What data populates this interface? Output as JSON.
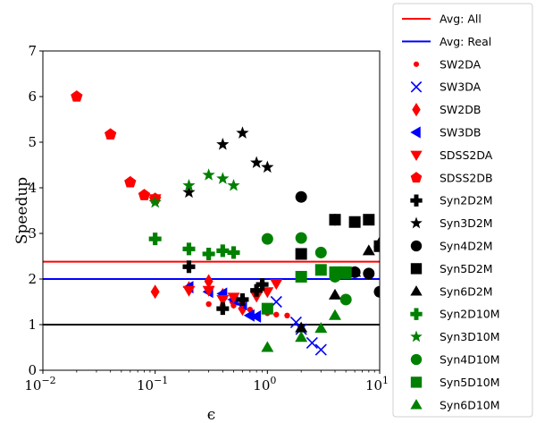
{
  "chart_data": {
    "type": "scatter",
    "xlabel": "ϵ",
    "ylabel": "Speedup",
    "xscale": "log",
    "xlim": [
      0.01,
      10
    ],
    "ylim": [
      0,
      7
    ],
    "xticks": [
      {
        "value": 0.01,
        "base": "10",
        "exp": "−2"
      },
      {
        "value": 0.1,
        "base": "10",
        "exp": "−1"
      },
      {
        "value": 1,
        "base": "10",
        "exp": "0"
      },
      {
        "value": 10,
        "base": "10",
        "exp": "1"
      }
    ],
    "yticks": [
      {
        "value": 0,
        "label": "0"
      },
      {
        "value": 1,
        "label": "1"
      },
      {
        "value": 2,
        "label": "2"
      },
      {
        "value": 3,
        "label": "3"
      },
      {
        "value": 4,
        "label": "4"
      },
      {
        "value": 5,
        "label": "5"
      },
      {
        "value": 6,
        "label": "6"
      },
      {
        "value": 7,
        "label": "7"
      }
    ],
    "grid": false,
    "legend_position": "outside-right",
    "hlines": [
      {
        "name": "Avg: All",
        "y": 2.38,
        "color": "#ff0000"
      },
      {
        "name": "Avg: Real",
        "y": 2.0,
        "color": "#0000ff"
      },
      {
        "y": 1.0,
        "color": "#000000"
      }
    ],
    "series": [
      {
        "name": "SW2DA",
        "marker": "dot",
        "color": "#ff0000",
        "points": [
          [
            0.3,
            1.45
          ],
          [
            0.4,
            1.42
          ],
          [
            0.5,
            1.42
          ],
          [
            0.6,
            1.35
          ],
          [
            0.7,
            1.33
          ],
          [
            1.0,
            1.25
          ],
          [
            1.2,
            1.22
          ],
          [
            1.5,
            1.2
          ]
        ]
      },
      {
        "name": "SW3DA",
        "marker": "x",
        "color": "#0000ff",
        "points": [
          [
            1.2,
            1.5
          ],
          [
            1.8,
            1.05
          ],
          [
            2.0,
            0.9
          ],
          [
            2.5,
            0.6
          ],
          [
            3.0,
            0.45
          ]
        ]
      },
      {
        "name": "SW2DB",
        "marker": "thin_diamond",
        "color": "#ff0000",
        "points": [
          [
            0.1,
            1.72
          ],
          [
            0.2,
            1.8
          ],
          [
            0.3,
            1.95
          ],
          [
            0.4,
            1.65
          ],
          [
            0.5,
            1.5
          ],
          [
            0.6,
            1.35
          ]
        ]
      },
      {
        "name": "SW3DB",
        "marker": "triangle-left",
        "color": "#0000ff",
        "points": [
          [
            0.2,
            1.82
          ],
          [
            0.3,
            1.72
          ],
          [
            0.4,
            1.68
          ],
          [
            0.5,
            1.55
          ],
          [
            0.6,
            1.45
          ],
          [
            0.7,
            1.2
          ],
          [
            0.8,
            1.18
          ]
        ]
      },
      {
        "name": "SDSS2DA",
        "marker": "triangle-down",
        "color": "#ff0000",
        "points": [
          [
            0.1,
            3.76
          ],
          [
            0.2,
            1.75
          ],
          [
            0.3,
            1.75
          ],
          [
            0.4,
            1.55
          ],
          [
            0.5,
            1.6
          ],
          [
            0.6,
            1.5
          ],
          [
            0.8,
            1.62
          ],
          [
            1.0,
            1.72
          ],
          [
            1.2,
            1.9
          ]
        ]
      },
      {
        "name": "SDSS2DB",
        "marker": "pentagon",
        "color": "#ff0000",
        "points": [
          [
            0.02,
            6.0
          ],
          [
            0.04,
            5.17
          ],
          [
            0.06,
            4.12
          ],
          [
            0.08,
            3.84
          ],
          [
            0.1,
            3.76
          ]
        ]
      },
      {
        "name": "Syn2D2M",
        "marker": "plus-filled",
        "color": "#000000",
        "points": [
          [
            0.2,
            2.27
          ],
          [
            0.4,
            1.35
          ],
          [
            0.6,
            1.55
          ],
          [
            0.8,
            1.75
          ],
          [
            0.9,
            1.88
          ]
        ]
      },
      {
        "name": "Syn3D2M",
        "marker": "star",
        "color": "#000000",
        "points": [
          [
            0.2,
            3.9
          ],
          [
            0.4,
            4.95
          ],
          [
            0.6,
            5.2
          ],
          [
            0.8,
            4.55
          ],
          [
            1.0,
            4.45
          ]
        ]
      },
      {
        "name": "Syn4D2M",
        "marker": "circle",
        "color": "#000000",
        "points": [
          [
            2.0,
            3.8
          ],
          [
            4.0,
            3.3
          ],
          [
            6.0,
            2.15
          ],
          [
            8.0,
            2.12
          ],
          [
            10.0,
            1.72
          ]
        ]
      },
      {
        "name": "Syn5D2M",
        "marker": "square",
        "color": "#000000",
        "points": [
          [
            2.0,
            2.55
          ],
          [
            4.0,
            3.3
          ],
          [
            6.0,
            3.25
          ],
          [
            8.0,
            3.3
          ],
          [
            10.0,
            2.72
          ]
        ]
      },
      {
        "name": "Syn6D2M",
        "marker": "triangle-up",
        "color": "#000000",
        "points": [
          [
            2.0,
            0.93
          ],
          [
            4.0,
            1.65
          ],
          [
            6.0,
            2.15
          ],
          [
            8.0,
            2.62
          ],
          [
            10.0,
            2.8
          ]
        ]
      },
      {
        "name": "Syn2D10M",
        "marker": "plus-filled",
        "color": "#008000",
        "points": [
          [
            0.1,
            2.88
          ],
          [
            0.2,
            2.66
          ],
          [
            0.3,
            2.55
          ],
          [
            0.4,
            2.62
          ],
          [
            0.5,
            2.58
          ]
        ]
      },
      {
        "name": "Syn3D10M",
        "marker": "star",
        "color": "#008000",
        "points": [
          [
            0.1,
            3.68
          ],
          [
            0.2,
            4.05
          ],
          [
            0.3,
            4.28
          ],
          [
            0.4,
            4.2
          ],
          [
            0.5,
            4.05
          ]
        ]
      },
      {
        "name": "Syn4D10M",
        "marker": "circle",
        "color": "#008000",
        "points": [
          [
            1.0,
            2.88
          ],
          [
            2.0,
            2.9
          ],
          [
            3.0,
            2.58
          ],
          [
            4.0,
            2.05
          ],
          [
            5.0,
            1.55
          ]
        ]
      },
      {
        "name": "Syn5D10M",
        "marker": "square",
        "color": "#008000",
        "points": [
          [
            1.0,
            1.35
          ],
          [
            2.0,
            2.05
          ],
          [
            3.0,
            2.2
          ],
          [
            4.0,
            2.15
          ],
          [
            5.0,
            2.15
          ]
        ]
      },
      {
        "name": "Syn6D10M",
        "marker": "triangle-up",
        "color": "#008000",
        "points": [
          [
            1.0,
            0.5
          ],
          [
            2.0,
            0.72
          ],
          [
            3.0,
            0.92
          ],
          [
            4.0,
            1.2
          ],
          [
            5.0,
            2.1
          ]
        ]
      }
    ]
  }
}
